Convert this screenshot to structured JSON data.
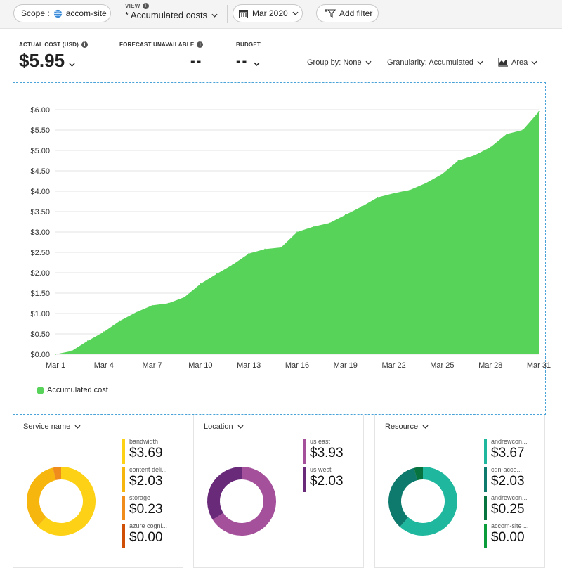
{
  "toolbar": {
    "scope_label": "Scope :",
    "scope_value": "accom-site",
    "view_label": "VIEW",
    "view_value": "* Accumulated costs",
    "date_value": "Mar 2020",
    "add_filter": "Add filter"
  },
  "summary": {
    "actual_label": "ACTUAL COST (USD)",
    "actual_value": "$5.95",
    "forecast_label": "FORECAST UNAVAILABLE",
    "forecast_value": "--",
    "budget_label": "BUDGET:",
    "budget_value": "--"
  },
  "controls": {
    "group_by": "Group by: None",
    "granularity": "Granularity: Accumulated",
    "chart_type": "Area"
  },
  "chart_data": {
    "type": "area",
    "title": "",
    "xlabel": "",
    "ylabel": "",
    "x_ticks": [
      "Mar 1",
      "Mar 4",
      "Mar 7",
      "Mar 10",
      "Mar 13",
      "Mar 16",
      "Mar 19",
      "Mar 22",
      "Mar 25",
      "Mar 28",
      "Mar 31"
    ],
    "y_ticks": [
      "$0.00",
      "$0.50",
      "$1.00",
      "$1.50",
      "$2.00",
      "$2.50",
      "$3.00",
      "$3.50",
      "$4.00",
      "$4.50",
      "$5.00",
      "$5.50",
      "$6.00"
    ],
    "ylim": [
      0,
      6
    ],
    "grid": true,
    "legend_position": "bottom-left",
    "color": "#58d35a",
    "series": [
      {
        "name": "Accumulated cost",
        "x": [
          1,
          2,
          3,
          4,
          5,
          6,
          7,
          8,
          9,
          10,
          11,
          12,
          13,
          14,
          15,
          16,
          17,
          18,
          19,
          20,
          21,
          22,
          23,
          24,
          25,
          26,
          27,
          28,
          29,
          30,
          31
        ],
        "values": [
          0.0,
          0.08,
          0.33,
          0.55,
          0.82,
          1.03,
          1.2,
          1.25,
          1.4,
          1.73,
          1.97,
          2.2,
          2.47,
          2.58,
          2.62,
          3.0,
          3.13,
          3.22,
          3.42,
          3.62,
          3.85,
          3.95,
          4.03,
          4.2,
          4.42,
          4.75,
          4.88,
          5.08,
          5.4,
          5.5,
          5.95
        ]
      }
    ]
  },
  "cards": [
    {
      "title": "Service name",
      "items": [
        {
          "name": "bandwidth",
          "value": "$3.69",
          "amount": 3.69,
          "color": "#fcd116"
        },
        {
          "name": "content deli...",
          "value": "$2.03",
          "amount": 2.03,
          "color": "#f6b60d"
        },
        {
          "name": "storage",
          "value": "$0.23",
          "amount": 0.23,
          "color": "#f08c1c"
        },
        {
          "name": "azure cogni...",
          "value": "$0.00",
          "amount": 0.0,
          "color": "#d04f06"
        }
      ]
    },
    {
      "title": "Location",
      "items": [
        {
          "name": "us east",
          "value": "$3.93",
          "amount": 3.93,
          "color": "#a4509b"
        },
        {
          "name": "us west",
          "value": "$2.03",
          "amount": 2.03,
          "color": "#6a2a7a"
        }
      ]
    },
    {
      "title": "Resource",
      "items": [
        {
          "name": "andrewcon...",
          "value": "$3.67",
          "amount": 3.67,
          "color": "#1fb89e"
        },
        {
          "name": "cdn-acco...",
          "value": "$2.03",
          "amount": 2.03,
          "color": "#0d7a6d"
        },
        {
          "name": "andrewcon...",
          "value": "$0.25",
          "amount": 0.25,
          "color": "#07733e"
        },
        {
          "name": "accom-site ...",
          "value": "$0.00",
          "amount": 0.0,
          "color": "#0a9c3a"
        }
      ]
    }
  ]
}
